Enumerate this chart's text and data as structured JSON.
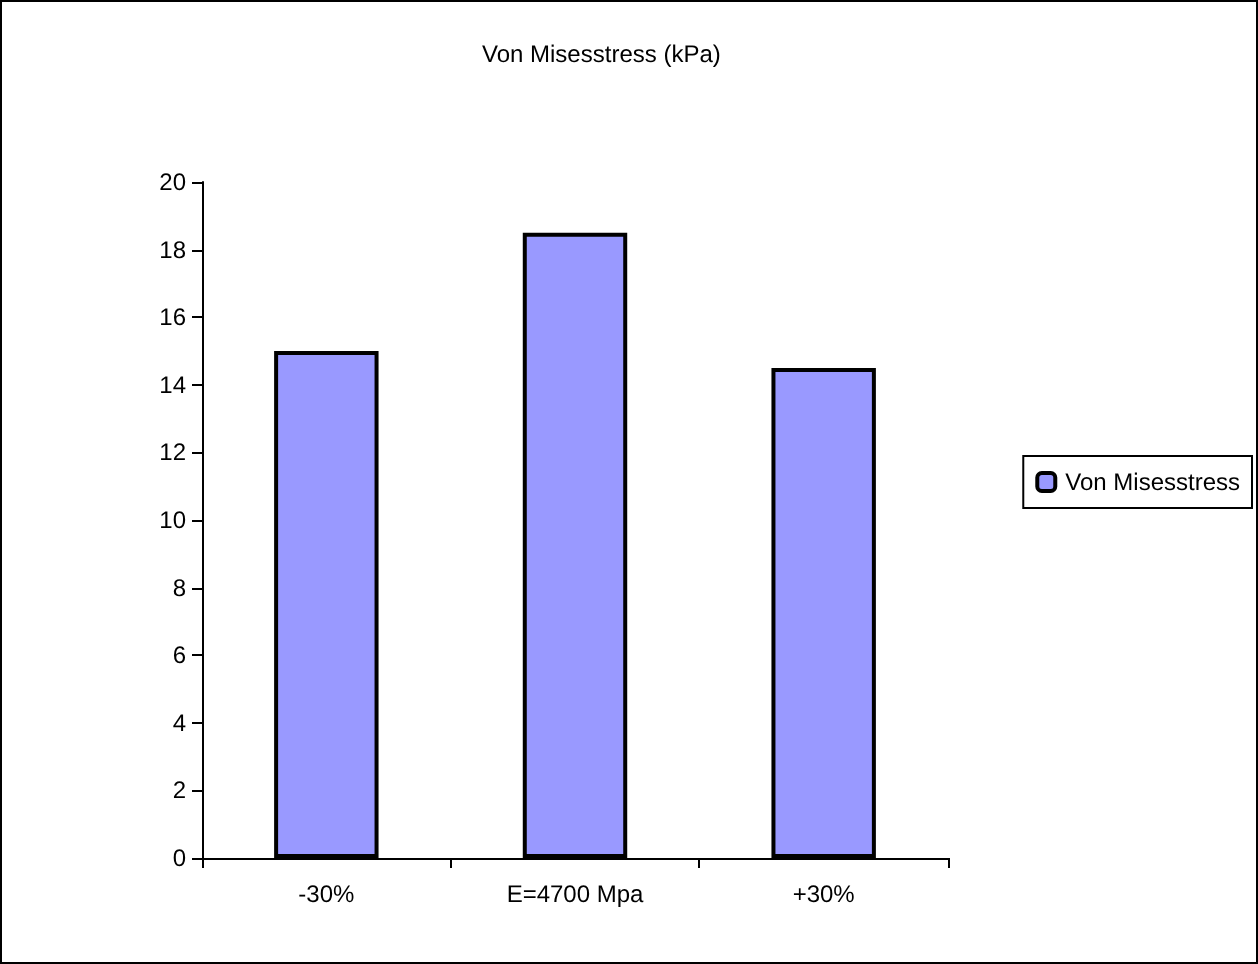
{
  "chart_data": {
    "type": "bar",
    "title": "Von Misesstress (kPa)",
    "categories": [
      "-30%",
      "E=4700 Mpa",
      "+30%"
    ],
    "series": [
      {
        "name": "Von Misesstress",
        "color": "#9999ff",
        "values": [
          15,
          18.5,
          14.5
        ]
      }
    ],
    "ylim": [
      0,
      20
    ],
    "yticks": [
      0,
      2,
      4,
      6,
      8,
      10,
      12,
      14,
      16,
      18,
      20
    ],
    "grid": false,
    "legend": "right"
  }
}
